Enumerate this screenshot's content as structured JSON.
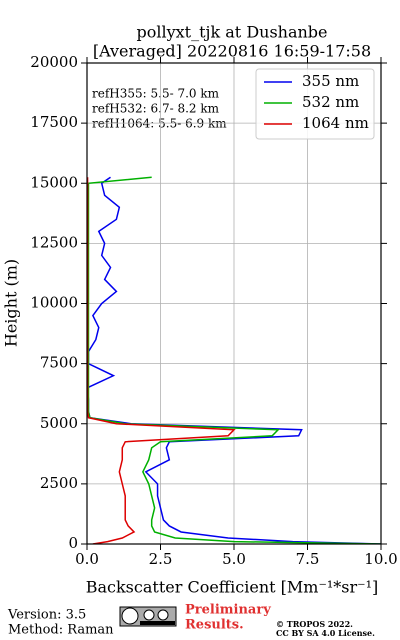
{
  "chart_data": {
    "type": "line",
    "title": "pollyxt_tjk at Dushanbe",
    "subtitle": "[Averaged] 20220816 16:59-17:58",
    "xlabel": "Backscatter Coefficient [Mm⁻¹*sr⁻¹]",
    "ylabel": "Height (m)",
    "annotations": [
      "refH355:  5.5- 7.0 km",
      "refH532:  6.7- 8.2 km",
      "refH1064:  5.5- 6.9 km"
    ],
    "heights": [
      0,
      100,
      250,
      500,
      750,
      1000,
      1500,
      2000,
      2500,
      3000,
      3500,
      4000,
      4250,
      4500,
      4750,
      5000,
      5250,
      5500,
      6000,
      6500,
      7000,
      7500,
      8000,
      8500,
      9000,
      9500,
      10000,
      10500,
      11000,
      11500,
      12000,
      12500,
      13000,
      13500,
      14000,
      14500,
      15000,
      15250
    ],
    "series": [
      {
        "name": "355 nm",
        "color": "#0000ee",
        "values": [
          10,
          7,
          4.8,
          3.2,
          2.8,
          2.6,
          2.5,
          2.4,
          2.4,
          2.0,
          2.8,
          2.7,
          2.8,
          7.2,
          7.3,
          1.5,
          0.1,
          0.05,
          0.05,
          0.02,
          0.9,
          0.05,
          0.05,
          0.3,
          0.4,
          0.2,
          0.5,
          1.0,
          0.6,
          0.8,
          0.5,
          0.6,
          0.4,
          1.0,
          1.1,
          0.6,
          0.5,
          0.8
        ]
      },
      {
        "name": "532 nm",
        "color": "#00b000",
        "values": [
          10,
          5,
          3,
          2.3,
          2.2,
          2.2,
          2.3,
          2.2,
          2.1,
          1.9,
          2.1,
          2.2,
          2.5,
          6.3,
          6.5,
          1.3,
          0.1,
          0.05,
          0.05,
          0.05,
          0.05,
          0.05,
          0.05,
          0.05,
          0.05,
          0.05,
          0.05,
          0.05,
          0.05,
          0.05,
          0.05,
          0.05,
          0.05,
          0.05,
          0.05,
          0.05,
          0.05,
          2.2
        ]
      },
      {
        "name": "1064 nm",
        "color": "#dd0000",
        "values": [
          0.2,
          0.7,
          1.2,
          1.6,
          1.4,
          1.3,
          1.3,
          1.3,
          1.2,
          1.1,
          1.2,
          1.2,
          1.3,
          4.8,
          5.0,
          1.0,
          0.05,
          0.02,
          0.02,
          0.02,
          0.02,
          0.02,
          0.02,
          0.02,
          0.02,
          0.02,
          0.02,
          0.02,
          0.02,
          0.02,
          0.02,
          0.02,
          0.02,
          0.02,
          0.02,
          0.02,
          0.02,
          0.02
        ]
      }
    ],
    "xlim": [
      0,
      10
    ],
    "xticks": [
      {
        "value": 0,
        "label": "0.0"
      },
      {
        "value": 2.5,
        "label": "2.5"
      },
      {
        "value": 5,
        "label": "5.0"
      },
      {
        "value": 7.5,
        "label": "7.5"
      },
      {
        "value": 10,
        "label": "10.0"
      }
    ],
    "ylim": [
      0,
      20000
    ],
    "yticks": [
      0,
      2500,
      5000,
      7500,
      10000,
      12500,
      15000,
      17500,
      20000
    ],
    "grid": true,
    "legend": "upper right"
  },
  "footer": {
    "version": "Version: 3.5",
    "method": "Method: Raman",
    "notice": [
      "Preliminary",
      "Results."
    ],
    "copyright": [
      "© TROPOS 2022.",
      "CC BY SA 4.0 License."
    ]
  }
}
